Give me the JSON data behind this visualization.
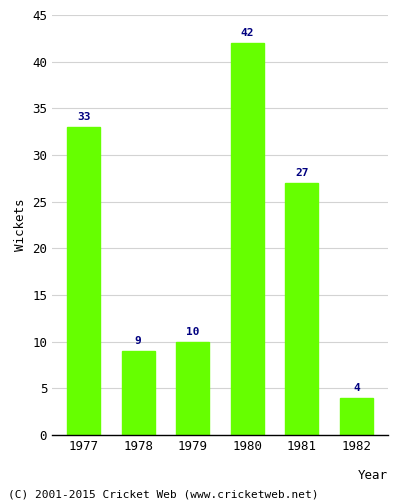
{
  "years": [
    "1977",
    "1978",
    "1979",
    "1980",
    "1981",
    "1982"
  ],
  "values": [
    33,
    9,
    10,
    42,
    27,
    4
  ],
  "bar_color": "#66ff00",
  "label_color": "#000080",
  "ylabel": "Wickets",
  "xlabel": "Year",
  "ylim": [
    0,
    45
  ],
  "yticks": [
    0,
    5,
    10,
    15,
    20,
    25,
    30,
    35,
    40,
    45
  ],
  "footer": "(C) 2001-2015 Cricket Web (www.cricketweb.net)",
  "label_fontsize": 8,
  "axis_fontsize": 9,
  "tick_fontsize": 9,
  "footer_fontsize": 8
}
